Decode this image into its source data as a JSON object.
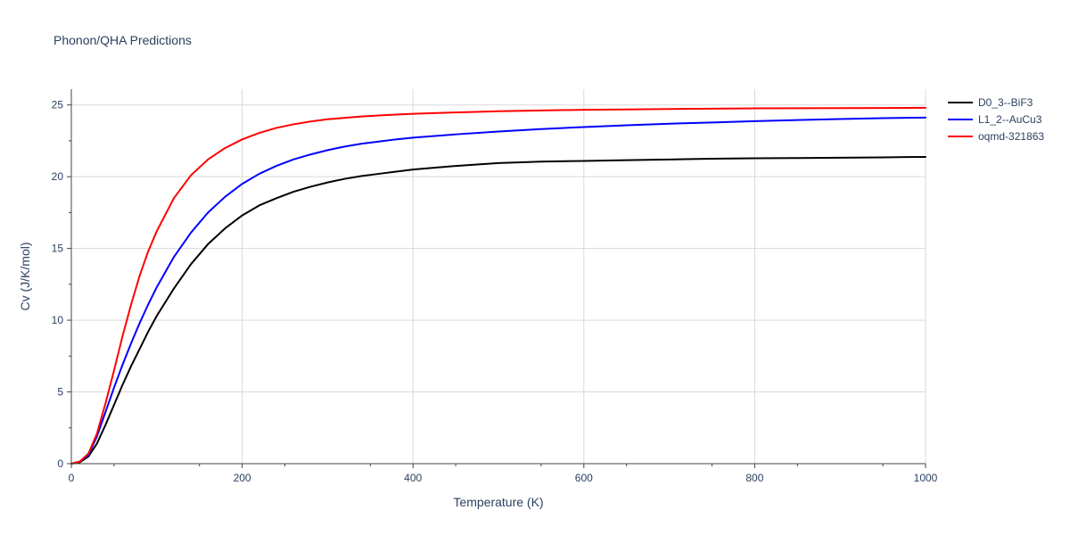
{
  "chart_data": {
    "type": "line",
    "title": "Phonon/QHA Predictions",
    "xlabel": "Temperature (K)",
    "ylabel": "Cv (J/K/mol)",
    "xlim": [
      0,
      1000
    ],
    "ylim": [
      0,
      26.1
    ],
    "x_ticks": [
      0,
      200,
      400,
      600,
      800,
      1000
    ],
    "y_ticks": [
      0,
      5,
      10,
      15,
      20,
      25
    ],
    "x_tick_labels": [
      "0",
      "200",
      "400",
      "600",
      "800",
      "1000"
    ],
    "y_tick_labels": [
      "0",
      "5",
      "10",
      "15",
      "20",
      "25"
    ],
    "grid": true,
    "legend_position": "top-right",
    "series": [
      {
        "name": "D0_3--BiF3",
        "color": "#000000",
        "x": [
          0,
          10,
          20,
          30,
          40,
          50,
          60,
          70,
          80,
          90,
          100,
          120,
          140,
          160,
          180,
          200,
          220,
          240,
          260,
          280,
          300,
          320,
          340,
          360,
          380,
          400,
          450,
          500,
          550,
          600,
          650,
          700,
          750,
          800,
          850,
          900,
          950,
          1000
        ],
        "y": [
          0,
          0.1,
          0.5,
          1.4,
          2.7,
          4.1,
          5.5,
          6.8,
          8.0,
          9.2,
          10.3,
          12.2,
          13.9,
          15.3,
          16.4,
          17.3,
          18.0,
          18.5,
          18.95,
          19.3,
          19.6,
          19.85,
          20.05,
          20.2,
          20.35,
          20.5,
          20.75,
          20.95,
          21.05,
          21.1,
          21.15,
          21.2,
          21.25,
          21.28,
          21.3,
          21.32,
          21.35,
          21.38
        ]
      },
      {
        "name": "L1_2--AuCu3",
        "color": "#0000ff",
        "x": [
          0,
          10,
          20,
          30,
          40,
          50,
          60,
          70,
          80,
          90,
          100,
          120,
          140,
          160,
          180,
          200,
          220,
          240,
          260,
          280,
          300,
          320,
          340,
          360,
          380,
          400,
          450,
          500,
          550,
          600,
          650,
          700,
          750,
          800,
          850,
          900,
          950,
          1000
        ],
        "y": [
          0,
          0.15,
          0.6,
          1.9,
          3.6,
          5.3,
          6.9,
          8.4,
          9.8,
          11.1,
          12.3,
          14.4,
          16.1,
          17.5,
          18.6,
          19.5,
          20.2,
          20.75,
          21.2,
          21.55,
          21.85,
          22.1,
          22.3,
          22.45,
          22.6,
          22.72,
          22.95,
          23.15,
          23.32,
          23.46,
          23.58,
          23.69,
          23.78,
          23.87,
          23.95,
          24.02,
          24.08,
          24.12
        ]
      },
      {
        "name": "oqmd-321863",
        "color": "#ff0000",
        "x": [
          0,
          10,
          20,
          30,
          40,
          50,
          60,
          70,
          80,
          90,
          100,
          120,
          140,
          160,
          180,
          200,
          220,
          240,
          260,
          280,
          300,
          320,
          340,
          360,
          380,
          400,
          450,
          500,
          550,
          600,
          650,
          700,
          750,
          800,
          850,
          900,
          950,
          1000
        ],
        "y": [
          0,
          0.15,
          0.7,
          2.1,
          4.2,
          6.5,
          8.9,
          11.1,
          13.1,
          14.8,
          16.2,
          18.5,
          20.1,
          21.2,
          22.0,
          22.6,
          23.05,
          23.4,
          23.65,
          23.85,
          24.0,
          24.1,
          24.2,
          24.27,
          24.33,
          24.38,
          24.48,
          24.56,
          24.62,
          24.66,
          24.69,
          24.72,
          24.74,
          24.76,
          24.77,
          24.78,
          24.79,
          24.8
        ]
      }
    ]
  }
}
